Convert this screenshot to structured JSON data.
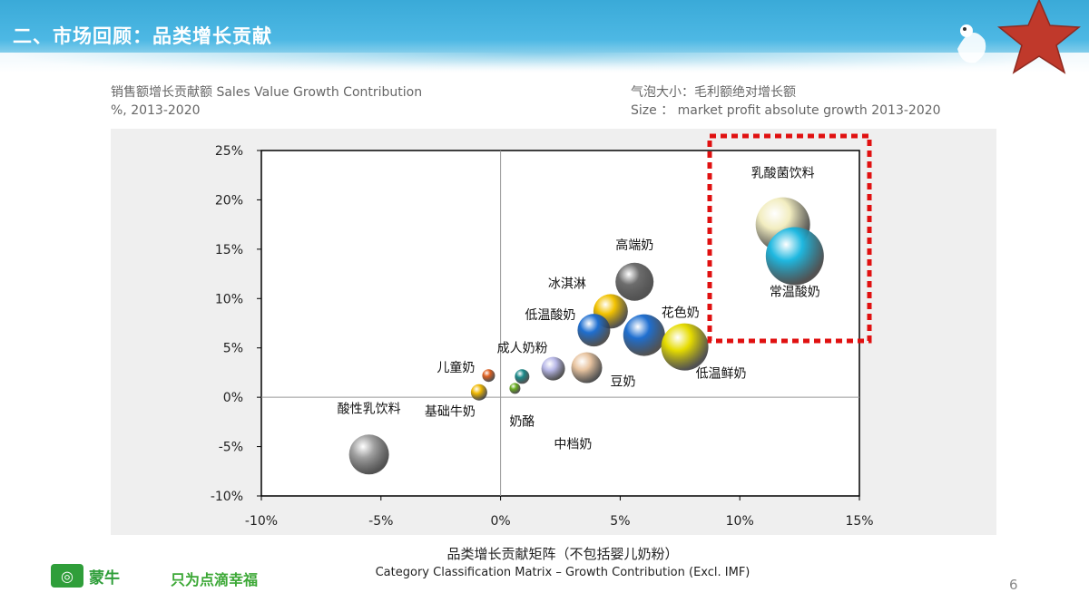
{
  "header": {
    "title": "二、市场回顾：品类增长贡献"
  },
  "labels": {
    "y_axis_cn": "销售额增长贡献额 Sales Value Growth Contribution",
    "y_axis_en2": "%, 2013-2020",
    "bubble_cn": "气泡大小：毛利额绝对增长额",
    "bubble_en": "Size ： market profit absolute growth 2013-2020",
    "chart_title_cn": "品类增长贡献矩阵（不包括婴儿奶粉）",
    "chart_title_en": "Category Classification Matrix – Growth  Contribution (Excl. IMF)"
  },
  "footer": {
    "brand": "蒙牛",
    "slogan": "只为点滴幸福",
    "page": "6"
  },
  "colors": {
    "highlight_box": "#e01010",
    "star": "#c0392b",
    "header": "#3aaad8"
  },
  "chart_data": {
    "type": "scatter",
    "xlim": [
      -10,
      15
    ],
    "ylim": [
      -10,
      25
    ],
    "x_ticks": [
      "-10%",
      "-5%",
      "0%",
      "5%",
      "10%",
      "15%"
    ],
    "x_tick_values": [
      -10,
      -5,
      0,
      5,
      10,
      15
    ],
    "y_ticks": [
      "25%",
      "20%",
      "15%",
      "10%",
      "5%",
      "0%",
      "-5%",
      "-10%"
    ],
    "y_tick_values": [
      25,
      20,
      15,
      10,
      5,
      0,
      -5,
      -10
    ],
    "grid": false,
    "highlight_box_label": "",
    "points": [
      {
        "label": "乳酸菌饮料",
        "x": 11.8,
        "y": 17.5,
        "size": 30,
        "color": "#f2edc0"
      },
      {
        "label": "常温酸奶",
        "x": 12.3,
        "y": 14.3,
        "size": 32,
        "color": "#1fb8e0"
      },
      {
        "label": "高端奶",
        "x": 5.6,
        "y": 11.7,
        "size": 21,
        "color": "#6d6d6d"
      },
      {
        "label": "冰淇淋",
        "x": 4.6,
        "y": 8.7,
        "size": 19,
        "color": "#f2c200"
      },
      {
        "label": "低温酸奶",
        "x": 3.9,
        "y": 6.8,
        "size": 18,
        "color": "#1f6fd0"
      },
      {
        "label": "花色奶",
        "x": 6.0,
        "y": 6.3,
        "size": 23,
        "color": "#1f6fd0"
      },
      {
        "label": "低温鲜奶",
        "x": 7.7,
        "y": 5.1,
        "size": 26,
        "color": "#e6dc00"
      },
      {
        "label": "豆奶",
        "x": 3.6,
        "y": 3.0,
        "size": 17,
        "color": "#e8c4a0"
      },
      {
        "label": "成人奶粉",
        "x": 2.2,
        "y": 2.9,
        "size": 13,
        "color": "#b8b8e8"
      },
      {
        "label": "奶酪",
        "x": 0.9,
        "y": 2.1,
        "size": 8,
        "color": "#1a8a8a"
      },
      {
        "label": "中档奶",
        "x": 0.6,
        "y": 0.9,
        "size": 6,
        "color": "#6ab020"
      },
      {
        "label": "儿童奶",
        "x": -0.5,
        "y": 2.2,
        "size": 7,
        "color": "#e06020"
      },
      {
        "label": "基础牛奶",
        "x": -0.9,
        "y": 0.5,
        "size": 9,
        "color": "#f0b800"
      },
      {
        "label": "酸性乳饮料",
        "x": -5.5,
        "y": -5.8,
        "size": 22,
        "color": "#a0a0a0"
      }
    ]
  }
}
